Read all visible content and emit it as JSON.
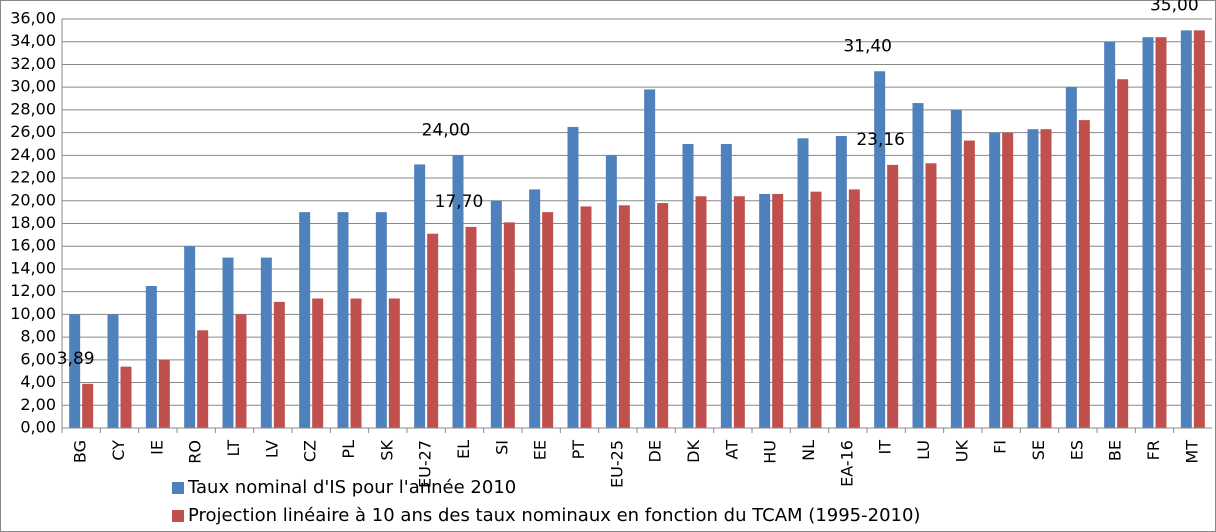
{
  "chart_data": {
    "type": "bar",
    "categories": [
      "BG",
      "CY",
      "IE",
      "RO",
      "LT",
      "LV",
      "CZ",
      "PL",
      "SK",
      "EU-27",
      "EL",
      "SI",
      "EE",
      "PT",
      "EU-25",
      "DE",
      "DK",
      "AT",
      "HU",
      "NL",
      "EA-16",
      "IT",
      "LU",
      "UK",
      "FI",
      "SE",
      "ES",
      "BE",
      "FR",
      "MT"
    ],
    "series": [
      {
        "name": "Taux nominal d'IS pour l'année 2010",
        "color": "#4f81bd",
        "values": [
          10,
          10,
          12.5,
          16,
          15,
          15,
          19,
          19,
          19,
          23.2,
          24,
          20,
          21,
          26.5,
          24,
          29.8,
          25,
          25,
          20.6,
          25.5,
          25.7,
          31.4,
          28.6,
          28,
          26,
          26.3,
          30,
          34,
          34.4,
          35
        ],
        "value_labels": [
          null,
          null,
          null,
          null,
          null,
          null,
          null,
          null,
          null,
          null,
          "24,00",
          null,
          null,
          null,
          null,
          null,
          null,
          null,
          null,
          null,
          null,
          "31,40",
          null,
          null,
          null,
          null,
          null,
          null,
          null,
          "35,00"
        ]
      },
      {
        "name": "Projection linéaire à 10 ans des taux nominaux en fonction du TCAM (1995-2010)",
        "color": "#c0504d",
        "values": [
          3.89,
          5.4,
          6,
          8.6,
          10,
          11.1,
          11.4,
          11.4,
          11.4,
          17.1,
          17.7,
          18.1,
          19,
          19.5,
          19.6,
          19.8,
          20.4,
          20.4,
          20.6,
          20.8,
          21,
          23.16,
          23.3,
          25.3,
          26,
          26.3,
          27.1,
          30.7,
          34.4,
          35
        ],
        "value_labels": [
          "3,89",
          null,
          null,
          null,
          null,
          null,
          null,
          null,
          null,
          null,
          "17,70",
          null,
          null,
          null,
          null,
          null,
          null,
          null,
          null,
          null,
          null,
          "23,16",
          null,
          null,
          null,
          null,
          null,
          null,
          null,
          null
        ]
      }
    ],
    "ylim": [
      0,
      36
    ],
    "yticks": [
      {
        "value": 0,
        "label": "0,00"
      },
      {
        "value": 2,
        "label": "2,00"
      },
      {
        "value": 4,
        "label": "4,00"
      },
      {
        "value": 6,
        "label": "6,00"
      },
      {
        "value": 8,
        "label": "8,00"
      },
      {
        "value": 10,
        "label": "10,00"
      },
      {
        "value": 12,
        "label": "12,00"
      },
      {
        "value": 14,
        "label": "14,00"
      },
      {
        "value": 16,
        "label": "16,00"
      },
      {
        "value": 18,
        "label": "18,00"
      },
      {
        "value": 20,
        "label": "20,00"
      },
      {
        "value": 22,
        "label": "22,00"
      },
      {
        "value": 24,
        "label": "24,00"
      },
      {
        "value": 26,
        "label": "26,00"
      },
      {
        "value": 28,
        "label": "28,00"
      },
      {
        "value": 30,
        "label": "30,00"
      },
      {
        "value": 32,
        "label": "32,00"
      },
      {
        "value": 34,
        "label": "34,00"
      },
      {
        "value": 36,
        "label": "36,00"
      }
    ],
    "grid": true
  }
}
